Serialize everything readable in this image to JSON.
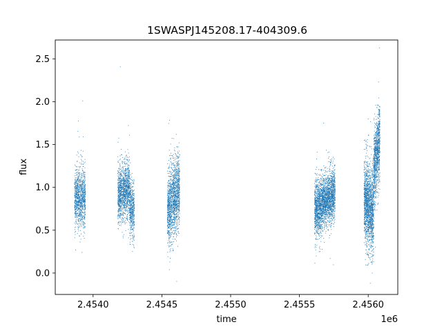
{
  "chart_data": {
    "type": "scatter",
    "title": "1SWASPJ145208.17-404309.6",
    "xlabel": "time",
    "ylabel": "flux",
    "x_offset_label": "1e6",
    "xlim": [
      2453725,
      2456215
    ],
    "ylim": [
      -0.25,
      2.72
    ],
    "grid": false,
    "point_color": "#1f77b4",
    "x_ticks": [
      {
        "value": 2454000,
        "label": "2.4540"
      },
      {
        "value": 2454500,
        "label": "2.4545"
      },
      {
        "value": 2455000,
        "label": "2.4550"
      },
      {
        "value": 2455500,
        "label": "2.4555"
      },
      {
        "value": 2456000,
        "label": "2.4560"
      }
    ],
    "y_ticks": [
      {
        "value": 0.0,
        "label": "0.0"
      },
      {
        "value": 0.5,
        "label": "0.5"
      },
      {
        "value": 1.0,
        "label": "1.0"
      },
      {
        "value": 1.5,
        "label": "1.5"
      },
      {
        "value": 2.0,
        "label": "2.0"
      },
      {
        "value": 2.5,
        "label": "2.5"
      }
    ],
    "clusters": [
      {
        "x_start": 2453865,
        "x_end": 2453945,
        "n": 1100,
        "y_start": 0.88,
        "y_end": 0.9,
        "sigma": 0.17
      },
      {
        "x_start": 2454180,
        "x_end": 2454265,
        "n": 1300,
        "y_start": 0.9,
        "y_end": 1.0,
        "sigma": 0.17
      },
      {
        "x_start": 2454265,
        "x_end": 2454300,
        "n": 500,
        "y_start": 0.8,
        "y_end": 0.7,
        "sigma": 0.16
      },
      {
        "x_start": 2454540,
        "x_end": 2454630,
        "n": 1600,
        "y_start": 0.72,
        "y_end": 1.0,
        "sigma": 0.22
      },
      {
        "x_start": 2455610,
        "x_end": 2455660,
        "n": 900,
        "y_start": 0.75,
        "y_end": 0.78,
        "sigma": 0.17
      },
      {
        "x_start": 2455660,
        "x_end": 2455760,
        "n": 1700,
        "y_start": 0.82,
        "y_end": 0.95,
        "sigma": 0.15
      },
      {
        "x_start": 2455970,
        "x_end": 2456040,
        "n": 1700,
        "y_start": 0.85,
        "y_end": 0.72,
        "sigma": 0.25
      },
      {
        "x_start": 2456040,
        "x_end": 2456085,
        "n": 1000,
        "y_start": 1.2,
        "y_end": 1.55,
        "sigma": 0.22
      }
    ]
  }
}
